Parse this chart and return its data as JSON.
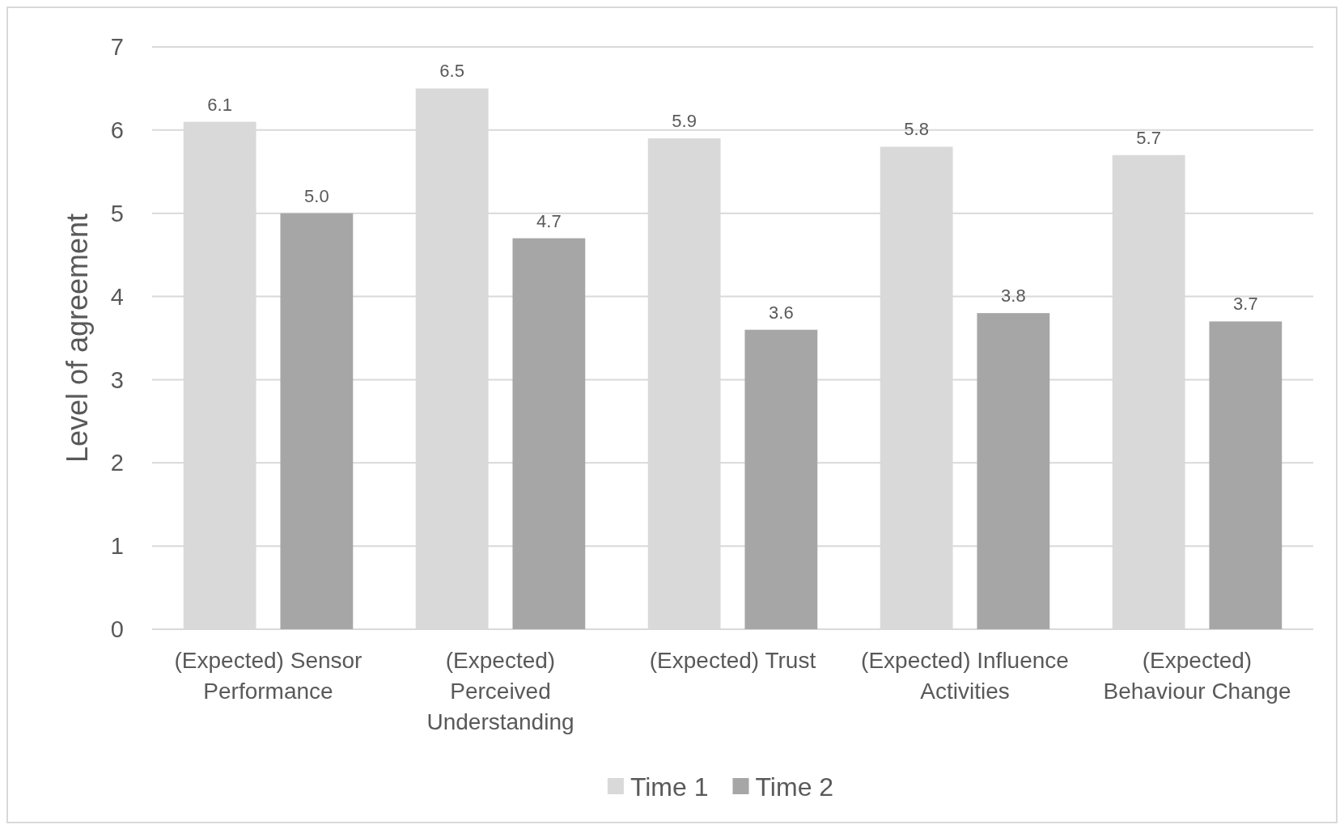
{
  "chart_data": {
    "type": "bar",
    "ylabel": "Level of agreement",
    "categories": [
      "(Expected) Sensor Performance",
      "(Expected) Perceived Understanding",
      "(Expected) Trust",
      "(Expected) Influence Activities",
      "(Expected) Behaviour Change"
    ],
    "series": [
      {
        "name": "Time 1",
        "color": "#d9d9d9",
        "values": [
          6.1,
          6.5,
          5.9,
          5.8,
          5.7
        ],
        "value_labels": [
          "6.1",
          "6.5",
          "5.9",
          "5.8",
          "5.7"
        ]
      },
      {
        "name": "Time 2",
        "color": "#a6a6a6",
        "values": [
          5.0,
          4.7,
          3.6,
          3.8,
          3.7
        ],
        "value_labels": [
          "5.0",
          "4.7",
          "3.6",
          "3.8",
          "3.7"
        ]
      }
    ],
    "ylim": [
      0,
      7
    ],
    "yticks": [
      0,
      1,
      2,
      3,
      4,
      5,
      6,
      7
    ],
    "grid": "y",
    "legend": "bottom"
  }
}
